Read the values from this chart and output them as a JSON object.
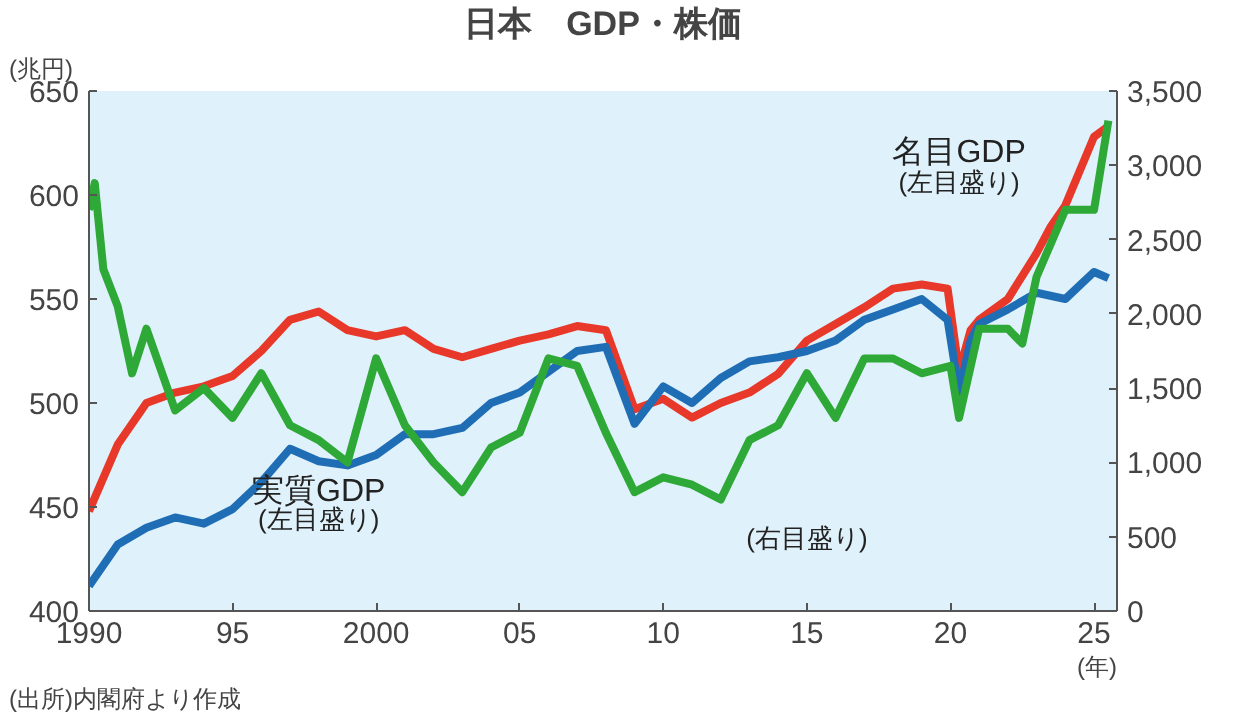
{
  "chart_data": {
    "type": "line",
    "title": "日本　GDP・株価",
    "ylabel": "(兆円)",
    "xlabel": "(年)",
    "xlim": [
      1990,
      2025.8
    ],
    "xticks": [
      {
        "value": 1990,
        "label": "1990"
      },
      {
        "value": 1995,
        "label": "95"
      },
      {
        "value": 2000,
        "label": "2000"
      },
      {
        "value": 2005,
        "label": "05"
      },
      {
        "value": 2010,
        "label": "10"
      },
      {
        "value": 2015,
        "label": "15"
      },
      {
        "value": 2020,
        "label": "20"
      },
      {
        "value": 2025,
        "label": "25"
      }
    ],
    "ylim": [
      400,
      650
    ],
    "yticks": [
      400,
      450,
      500,
      550,
      600,
      650
    ],
    "y2lim": [
      0,
      3500
    ],
    "y2ticks": [
      0,
      {
        "value": 500,
        "label": "500"
      },
      {
        "value": 1000,
        "label": "1,000"
      },
      {
        "value": 1500,
        "label": "1,500"
      },
      {
        "value": 2000,
        "label": "2,000"
      },
      {
        "value": 2500,
        "label": "2,500"
      },
      {
        "value": 3000,
        "label": "3,000"
      },
      {
        "value": 3500,
        "label": "3,500"
      }
    ],
    "grid": false,
    "series": [
      {
        "color": "#e8382a",
        "x": [
          1990,
          1991,
          1992,
          1993,
          1994,
          1995,
          1996,
          1997,
          1998,
          1999,
          2000,
          2001,
          2002,
          2003,
          2004,
          2005,
          2006,
          2007,
          2008,
          2009,
          2010,
          2011,
          2012,
          2013,
          2014,
          2015,
          2016,
          2017,
          2018,
          2019,
          2019.9,
          2020.3,
          2020.7,
          2021,
          2022,
          2023,
          2023.5,
          2024,
          2025,
          2025.5
        ],
        "values": [
          448,
          480,
          500,
          505,
          508,
          513,
          525,
          540,
          544,
          535,
          532,
          535,
          526,
          522,
          526,
          530,
          533,
          537,
          535,
          497,
          502,
          493,
          500,
          505,
          514,
          530,
          538,
          546,
          555,
          557,
          555,
          515,
          535,
          540,
          550,
          572,
          585,
          595,
          628,
          633
        ]
      },
      {
        "color": "#1f6db5",
        "x": [
          1990,
          1991,
          1992,
          1993,
          1994,
          1995,
          1996,
          1997,
          1998,
          1999,
          2000,
          2001,
          2002,
          2003,
          2004,
          2005,
          2006,
          2007,
          2008,
          2009,
          2010,
          2011,
          2012,
          2013,
          2014,
          2015,
          2016,
          2017,
          2018,
          2019,
          2019.9,
          2020.3,
          2020.7,
          2021,
          2022,
          2023,
          2024,
          2025,
          2025.5
        ],
        "values": [
          412,
          432,
          440,
          445,
          442,
          449,
          462,
          478,
          472,
          470,
          475,
          485,
          485,
          488,
          500,
          505,
          515,
          525,
          527,
          490,
          508,
          500,
          512,
          520,
          522,
          525,
          530,
          540,
          545,
          550,
          540,
          505,
          530,
          538,
          545,
          553,
          550,
          563,
          560
        ]
      },
      {
        "axis": "y2",
        "color": "#2ea836",
        "x": [
          1990,
          1990.2,
          1990.5,
          1991,
          1991.5,
          1992,
          1993,
          1994,
          1995,
          1996,
          1997,
          1998,
          1999,
          2000,
          2001,
          2002,
          2003,
          2004,
          2005,
          2006,
          2007,
          2008,
          2009,
          2010,
          2011,
          2012,
          2013,
          2014,
          2015,
          2016,
          2017,
          2018,
          2019,
          2020,
          2020.3,
          2021,
          2022,
          2022.5,
          2023,
          2024,
          2024.5,
          2025,
          2025.5
        ],
        "values": [
          2700,
          2880,
          2300,
          2050,
          1600,
          1900,
          1350,
          1500,
          1300,
          1600,
          1250,
          1150,
          1000,
          1700,
          1250,
          1000,
          800,
          1100,
          1200,
          1700,
          1650,
          1200,
          800,
          900,
          850,
          750,
          1150,
          1250,
          1600,
          1300,
          1700,
          1700,
          1600,
          1650,
          1300,
          1900,
          1900,
          1800,
          2250,
          2700,
          2700,
          2700,
          3300
        ]
      }
    ],
    "annotations": [
      "実質GDP",
      "(左目盛り)",
      "名目GDP",
      "(左目盛り)",
      "(右目盛り)",
      "(出所)内閣府より作成"
    ]
  }
}
